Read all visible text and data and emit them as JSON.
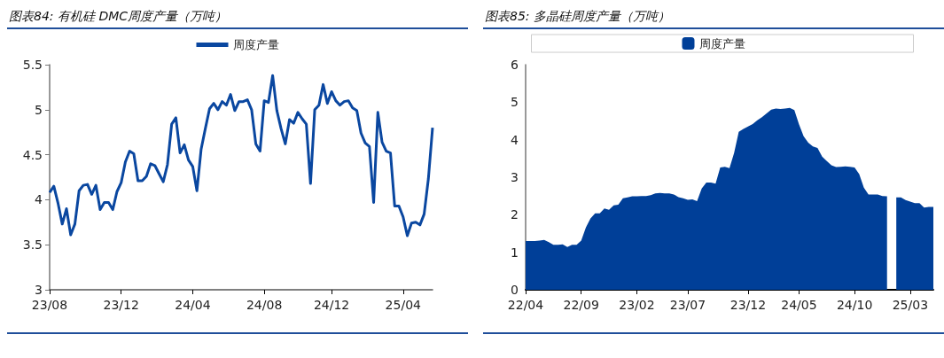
{
  "chart_data": [
    {
      "type": "line",
      "title": "图表84: 有机硅 DMC周度产量（万吨）",
      "categories": [
        "23/08",
        null,
        null,
        null,
        null,
        null,
        null,
        null,
        null,
        null,
        null,
        null,
        null,
        null,
        null,
        null,
        null,
        "23/12",
        null,
        null,
        null,
        null,
        null,
        null,
        null,
        null,
        null,
        null,
        null,
        null,
        null,
        null,
        null,
        null,
        "24/04",
        null,
        null,
        null,
        null,
        null,
        null,
        null,
        null,
        null,
        null,
        null,
        null,
        null,
        null,
        null,
        null,
        "24/08",
        null,
        null,
        null,
        null,
        null,
        null,
        null,
        null,
        null,
        null,
        null,
        null,
        null,
        null,
        null,
        "24/12",
        null,
        null,
        null,
        null,
        null,
        null,
        null,
        null,
        null,
        null,
        null,
        null,
        null,
        null,
        null,
        null,
        "25/04",
        null,
        null,
        null,
        null,
        null,
        null,
        null
      ],
      "series": [
        {
          "name": "周度产量",
          "color": "#0a47a0",
          "values": [
            4.08,
            4.15,
            3.96,
            3.73,
            3.9,
            3.61,
            3.73,
            4.1,
            4.16,
            4.17,
            4.06,
            4.16,
            3.89,
            3.97,
            3.97,
            3.89,
            4.09,
            4.19,
            4.42,
            4.54,
            4.51,
            4.21,
            4.21,
            4.26,
            4.4,
            4.38,
            4.29,
            4.2,
            4.39,
            4.84,
            4.91,
            4.52,
            4.61,
            4.44,
            4.37,
            4.1,
            4.56,
            4.79,
            5.01,
            5.07,
            5.0,
            5.09,
            5.05,
            5.17,
            4.99,
            5.09,
            5.09,
            5.11,
            5.0,
            4.62,
            4.54,
            5.1,
            5.08,
            5.38,
            4.99,
            4.79,
            4.62,
            4.89,
            4.85,
            4.97,
            4.9,
            4.84,
            4.18,
            5.0,
            5.05,
            5.28,
            5.07,
            5.2,
            5.1,
            5.05,
            5.09,
            5.1,
            5.02,
            4.99,
            4.74,
            4.63,
            4.59,
            3.97,
            4.97,
            4.64,
            4.54,
            4.52,
            3.93,
            3.93,
            3.81,
            3.6,
            3.74,
            3.75,
            3.72,
            3.84,
            4.23,
            4.8
          ]
        }
      ],
      "ylim": [
        3,
        5.5
      ],
      "yticks": [
        3,
        3.5,
        4,
        4.5,
        5,
        5.5
      ],
      "legend": "top",
      "marker": "none"
    },
    {
      "type": "area",
      "title": "图表85: 多晶硅周度产量（万吨）",
      "categories": [
        "22/04",
        null,
        null,
        null,
        null,
        null,
        null,
        null,
        null,
        null,
        null,
        null,
        "22/09",
        null,
        null,
        null,
        null,
        null,
        null,
        null,
        null,
        null,
        null,
        null,
        "23/02",
        null,
        null,
        null,
        null,
        null,
        null,
        null,
        null,
        null,
        null,
        "23/07",
        null,
        null,
        null,
        null,
        null,
        null,
        null,
        null,
        null,
        null,
        null,
        null,
        "23/12",
        null,
        null,
        null,
        null,
        null,
        null,
        null,
        null,
        null,
        null,
        "24/05",
        null,
        null,
        null,
        null,
        null,
        null,
        null,
        null,
        null,
        null,
        null,
        "24/10",
        null,
        null,
        null,
        null,
        null,
        null,
        null,
        null,
        null,
        null,
        null,
        "25/03",
        null,
        null,
        null,
        null,
        null
      ],
      "series": [
        {
          "name": "周度产量",
          "color": "#003f98",
          "values": [
            1.3,
            1.3,
            1.3,
            1.31,
            1.33,
            1.27,
            1.2,
            1.2,
            1.21,
            1.14,
            1.2,
            1.2,
            1.31,
            1.66,
            1.9,
            2.04,
            2.04,
            2.17,
            2.13,
            2.25,
            2.27,
            2.44,
            2.46,
            2.49,
            2.49,
            2.5,
            2.5,
            2.52,
            2.57,
            2.58,
            2.57,
            2.57,
            2.54,
            2.47,
            2.44,
            2.4,
            2.41,
            2.36,
            2.7,
            2.86,
            2.86,
            2.83,
            3.26,
            3.28,
            3.24,
            3.65,
            4.21,
            4.29,
            4.35,
            4.42,
            4.52,
            4.6,
            4.7,
            4.8,
            4.83,
            4.82,
            4.83,
            4.85,
            4.79,
            4.41,
            4.09,
            3.92,
            3.82,
            3.78,
            3.55,
            3.43,
            3.32,
            3.27,
            3.28,
            3.29,
            3.28,
            3.26,
            3.08,
            2.72,
            2.54,
            2.54,
            2.54,
            2.5,
            2.49,
            null,
            2.46,
            2.46,
            2.39,
            2.35,
            2.31,
            2.31,
            2.19,
            2.21,
            2.21
          ]
        }
      ],
      "ylim": [
        0,
        6
      ],
      "yticks": [
        0,
        1,
        2,
        3,
        4,
        5,
        6
      ],
      "legend": "top"
    }
  ]
}
